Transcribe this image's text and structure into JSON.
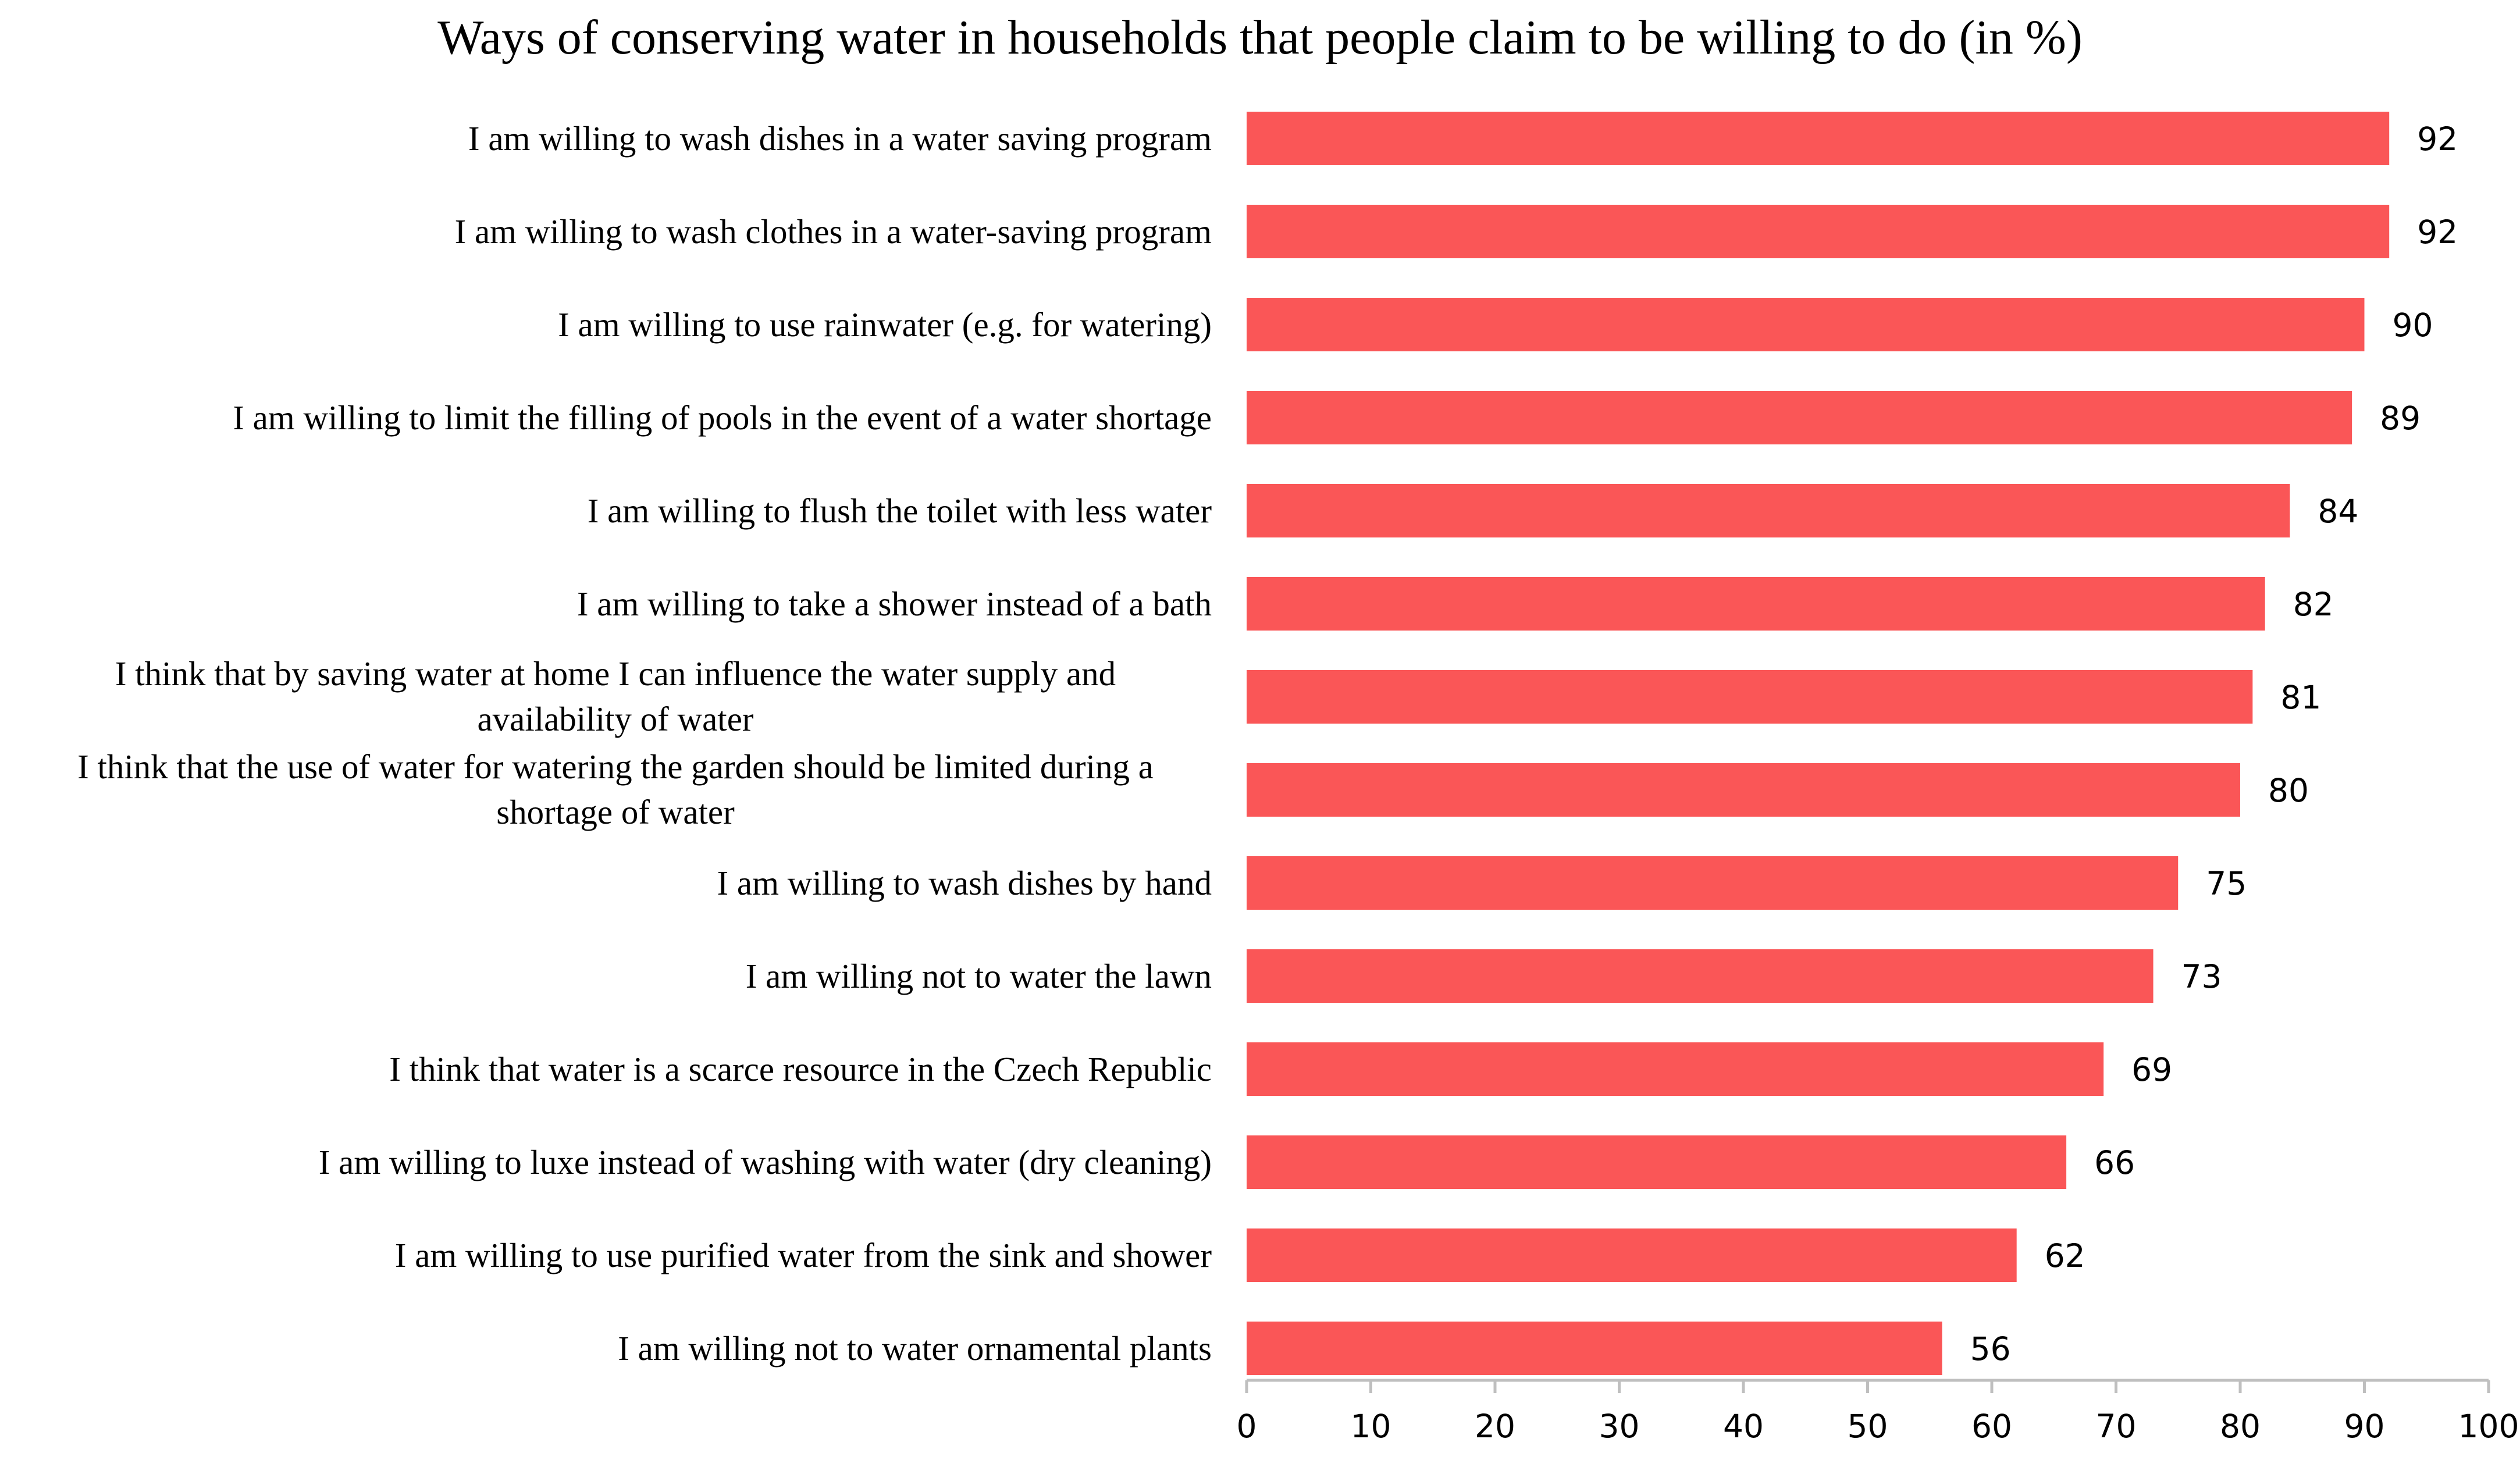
{
  "chart_data": {
    "type": "bar",
    "orientation": "horizontal",
    "title": "Ways of conserving water in households that people claim to be willing to do (in %)",
    "xlabel": "",
    "ylabel": "",
    "xlim": [
      0,
      100
    ],
    "x_ticks": [
      0,
      10,
      20,
      30,
      40,
      50,
      60,
      70,
      80,
      90,
      100
    ],
    "grid": false,
    "legend": "none",
    "bar_color": "#fa5657",
    "categories": [
      [
        "I am willing to wash dishes in a water saving program"
      ],
      [
        "I am willing to wash clothes in a water-saving program"
      ],
      [
        "I am willing to use rainwater (e.g. for watering)"
      ],
      [
        "I am willing to limit the filling of pools in the event of a water shortage"
      ],
      [
        "I am willing to flush the toilet with less water"
      ],
      [
        "I am willing to take a shower instead of a bath"
      ],
      [
        "I think that by saving water at home I can influence the water supply and",
        "availability of water"
      ],
      [
        "I think that the use of water for watering the garden should be limited during a",
        "shortage of water"
      ],
      [
        "I am willing to wash dishes by hand"
      ],
      [
        "I am willing not to water the lawn"
      ],
      [
        "I think that water is a scarce resource in the Czech Republic"
      ],
      [
        "I am willing to luxe instead of washing with water (dry cleaning)"
      ],
      [
        "I am willing to use purified water from the sink and shower"
      ],
      [
        "I am willing not to water ornamental plants"
      ]
    ],
    "values": [
      92,
      92,
      90,
      89,
      84,
      82,
      81,
      80,
      75,
      73,
      69,
      66,
      62,
      56
    ]
  }
}
